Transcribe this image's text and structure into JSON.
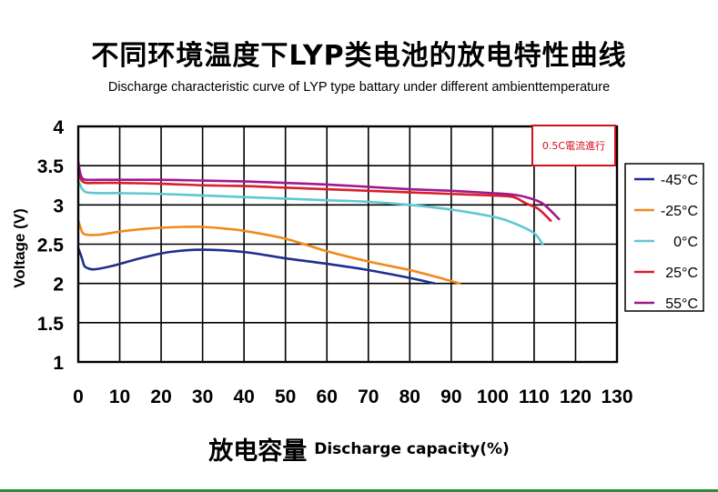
{
  "chart_data": {
    "type": "line",
    "title": "不同环境温度下LYP类电池的放电特性曲线",
    "subtitle": "Discharge characteristic curve of LYP type battary under different ambienttemperature",
    "xlabel_cn": "放电容量",
    "xlabel_en": "Discharge capacity(%)",
    "ylabel": "Voltage (V)",
    "xlim": [
      0,
      130
    ],
    "ylim": [
      1,
      4
    ],
    "x_ticks": [
      0,
      10,
      20,
      30,
      40,
      50,
      60,
      70,
      80,
      90,
      100,
      110,
      120,
      130
    ],
    "x_tick_labels": [
      "0",
      "10",
      "20",
      "30",
      "40",
      "50",
      "60",
      "70",
      "80",
      "90",
      "100",
      "110",
      "120",
      "130"
    ],
    "y_ticks": [
      1,
      1.5,
      2,
      2.5,
      3,
      3.5,
      4
    ],
    "y_tick_labels": [
      "1",
      "1.5",
      "2",
      "2.5",
      "3",
      "3.5",
      "4"
    ],
    "grid": true,
    "annotation": "0.5C電流進行",
    "annotation_color": "#d0101c",
    "legend_position": "right",
    "series": [
      {
        "name": "-45°C",
        "color": "#1f2f8c",
        "x": [
          0,
          0.5,
          1,
          1.5,
          2.5,
          4,
          8,
          15,
          22,
          30,
          40,
          50,
          60,
          70,
          80,
          86
        ],
        "y": [
          2.45,
          2.38,
          2.3,
          2.22,
          2.19,
          2.18,
          2.22,
          2.32,
          2.4,
          2.43,
          2.4,
          2.32,
          2.25,
          2.17,
          2.07,
          2.0
        ]
      },
      {
        "name": "-25°C",
        "color": "#f08a1a",
        "x": [
          0,
          0.5,
          1,
          2,
          5,
          10,
          15,
          20,
          25,
          30,
          35,
          40,
          50,
          60,
          70,
          80,
          88,
          92
        ],
        "y": [
          2.8,
          2.72,
          2.65,
          2.62,
          2.62,
          2.66,
          2.69,
          2.71,
          2.72,
          2.72,
          2.7,
          2.67,
          2.57,
          2.41,
          2.28,
          2.17,
          2.06,
          2.0
        ]
      },
      {
        "name": "0°C",
        "color": "#5ec8d0",
        "x": [
          0,
          0.5,
          1,
          2,
          5,
          10,
          20,
          30,
          40,
          50,
          60,
          70,
          80,
          90,
          100,
          105,
          110,
          112
        ],
        "y": [
          3.3,
          3.25,
          3.2,
          3.16,
          3.15,
          3.15,
          3.14,
          3.12,
          3.1,
          3.08,
          3.06,
          3.04,
          3.0,
          2.94,
          2.85,
          2.77,
          2.64,
          2.5
        ]
      },
      {
        "name": "25°C",
        "color": "#d81f2a",
        "x": [
          0,
          0.5,
          1,
          2,
          5,
          10,
          20,
          30,
          40,
          50,
          60,
          70,
          80,
          90,
          100,
          105,
          108,
          111,
          114
        ],
        "y": [
          3.45,
          3.34,
          3.3,
          3.28,
          3.28,
          3.28,
          3.27,
          3.25,
          3.24,
          3.22,
          3.2,
          3.18,
          3.16,
          3.14,
          3.12,
          3.1,
          3.02,
          2.95,
          2.8
        ]
      },
      {
        "name": "55°C",
        "color": "#a01890",
        "x": [
          0,
          0.5,
          1,
          2,
          5,
          10,
          20,
          30,
          40,
          50,
          60,
          70,
          80,
          90,
          100,
          105,
          108,
          112,
          116
        ],
        "y": [
          3.55,
          3.4,
          3.34,
          3.32,
          3.32,
          3.32,
          3.32,
          3.31,
          3.3,
          3.28,
          3.26,
          3.23,
          3.2,
          3.18,
          3.15,
          3.13,
          3.1,
          3.02,
          2.82
        ]
      }
    ]
  }
}
